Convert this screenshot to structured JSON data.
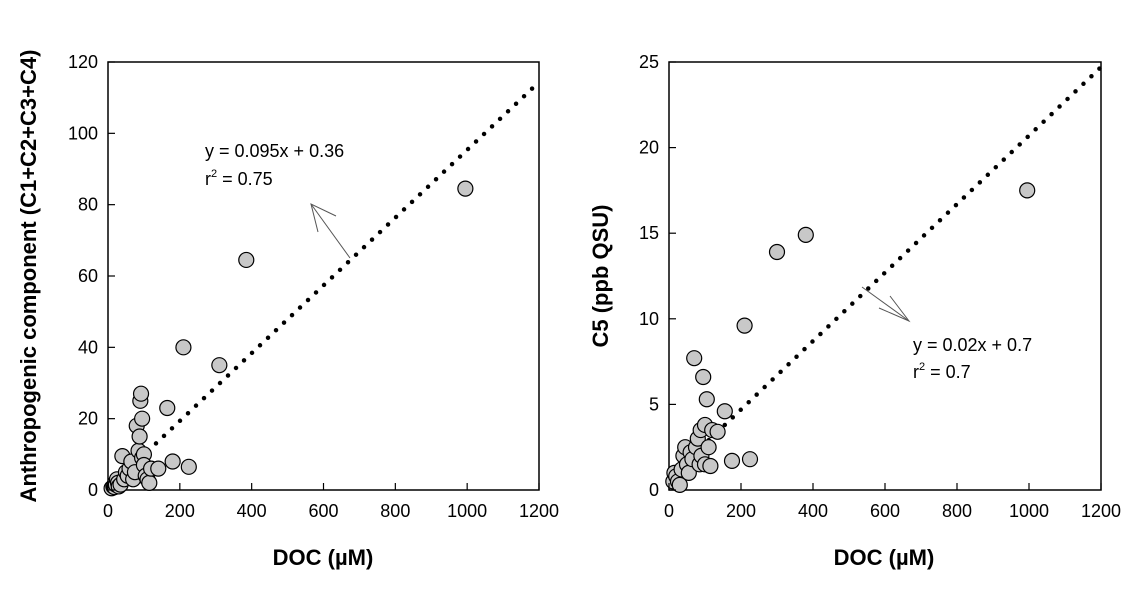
{
  "chart_data": [
    {
      "type": "scatter",
      "xlabel": "DOC (µM)",
      "ylabel": "Anthropogenic component (C1+C2+C3+C4)",
      "xlim": [
        0,
        1200
      ],
      "ylim": [
        0,
        120
      ],
      "xticks": [
        "0",
        "200",
        "400",
        "600",
        "800",
        "1000",
        "1200"
      ],
      "yticks": [
        "0",
        "20",
        "40",
        "60",
        "80",
        "100",
        "120"
      ],
      "grid": false,
      "series": [
        {
          "marker_color": "#c8c8c8",
          "x": [
            10,
            15,
            18,
            20,
            22,
            25,
            28,
            30,
            35,
            40,
            45,
            50,
            55,
            60,
            65,
            70,
            75,
            80,
            85,
            88,
            90,
            92,
            95,
            95,
            100,
            100,
            105,
            110,
            115,
            120,
            140,
            165,
            180,
            210,
            225,
            310,
            385,
            995
          ],
          "y": [
            0.5,
            1,
            0.8,
            2,
            1.5,
            3,
            2,
            1,
            1.5,
            9.5,
            3,
            5,
            4,
            6,
            8,
            3,
            5,
            18,
            11,
            15,
            25,
            27,
            20,
            9,
            10,
            7,
            4,
            3,
            2,
            6,
            6,
            23,
            8,
            40,
            6.5,
            35,
            64.5,
            84.5
          ]
        }
      ],
      "fit_line": {
        "slope": 0.095,
        "intercept": 0.36,
        "x_range": [
          0,
          1200
        ],
        "style": "dotted"
      },
      "annotation": {
        "equation": "y = 0.095x + 0.36",
        "r2_base": "r",
        "r2_sup": "2",
        "r2_value": " = 0.75"
      }
    },
    {
      "type": "scatter",
      "xlabel": "DOC (µM)",
      "ylabel": "C5 (ppb QSU)",
      "xlim": [
        0,
        1200
      ],
      "ylim": [
        0,
        25
      ],
      "xticks": [
        "0",
        "200",
        "400",
        "600",
        "800",
        "1000",
        "1200"
      ],
      "yticks": [
        "0",
        "5",
        "10",
        "15",
        "20",
        "25"
      ],
      "grid": false,
      "series": [
        {
          "marker_color": "#c8c8c8",
          "x": [
            12,
            15,
            20,
            25,
            30,
            35,
            40,
            45,
            50,
            55,
            60,
            65,
            70,
            75,
            80,
            85,
            88,
            90,
            95,
            100,
            100,
            105,
            110,
            115,
            120,
            135,
            155,
            175,
            210,
            225,
            300,
            380,
            995
          ],
          "y": [
            0.5,
            1,
            0.8,
            0.5,
            0.3,
            1.2,
            2,
            2.5,
            1.5,
            1,
            2.2,
            1.8,
            7.7,
            2.5,
            3,
            1.5,
            3.5,
            2,
            6.6,
            3.8,
            1.5,
            5.3,
            2.5,
            1.4,
            3.5,
            3.4,
            4.6,
            1.7,
            9.6,
            1.8,
            13.9,
            14.9,
            17.5
          ]
        }
      ],
      "fit_line": {
        "slope": 0.02,
        "intercept": 0.7,
        "x_range": [
          0,
          1200
        ],
        "style": "dotted"
      },
      "annotation": {
        "equation": "y = 0.02x + 0.7",
        "r2_base": "r",
        "r2_sup": "2",
        "r2_value": " = 0.7"
      }
    }
  ]
}
